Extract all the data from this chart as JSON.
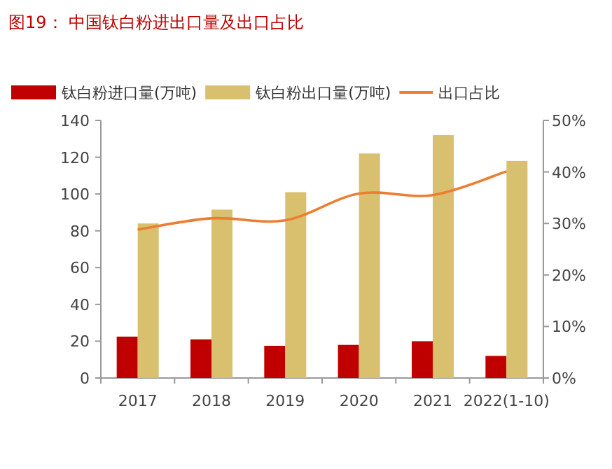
{
  "chart_data": {
    "type": "bar",
    "title": "图19：  中国钛白粉进出口量及出口占比",
    "categories": [
      "2017",
      "2018",
      "2019",
      "2020",
      "2021",
      "2022(1-10)"
    ],
    "series": [
      {
        "name": "钛白粉进口量(万吨)",
        "color": "#c00000",
        "values": [
          22.5,
          21,
          17.5,
          18,
          20,
          12
        ]
      },
      {
        "name": "钛白粉出口量(万吨)",
        "color": "#d9c06e",
        "values": [
          84,
          91.5,
          101,
          122,
          132,
          118
        ]
      },
      {
        "name": "出口占比",
        "type": "line",
        "axis": "y2",
        "color": "#ed7d31",
        "values": [
          28.8,
          31,
          30.6,
          35.8,
          35.5,
          40.1
        ]
      }
    ],
    "ylim": [
      0,
      140
    ],
    "yticks": [
      0,
      20,
      40,
      60,
      80,
      100,
      120,
      140
    ],
    "y2lim": [
      0,
      50
    ],
    "y2ticks": [
      {
        "value": 0,
        "label": "0%"
      },
      {
        "value": 10,
        "label": "10%"
      },
      {
        "value": 20,
        "label": "20%"
      },
      {
        "value": 30,
        "label": "30%"
      },
      {
        "value": 40,
        "label": "40%"
      },
      {
        "value": 50,
        "label": "50%"
      }
    ],
    "legend": "top",
    "grid": false
  }
}
